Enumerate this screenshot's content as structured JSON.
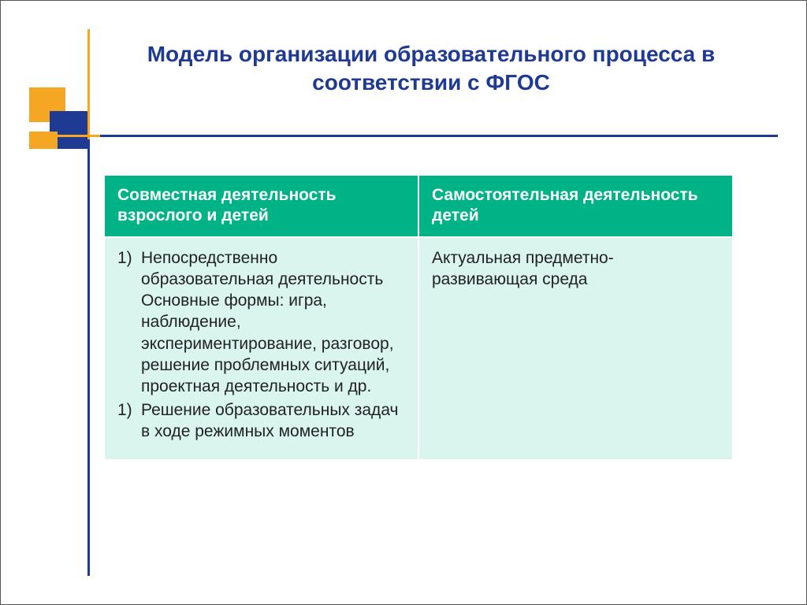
{
  "title": "Модель организации образовательного процесса в соответствии с ФГОС",
  "table": {
    "headers": [
      "Совместная деятельность взрослого и детей",
      "Самостоятельная деятельность детей"
    ],
    "col1": {
      "items": [
        {
          "num": "1)",
          "text": "Непосредственно образовательная деятельность Основные формы: игра, наблюдение, экспериментирование, разговор, решение проблемных ситуаций, проектная деятельность и др."
        },
        {
          "num": "1)",
          "text": "Решение образовательных задач в ходе режимных моментов"
        }
      ]
    },
    "col2": "Актуальная предметно-развивающая среда"
  },
  "colors": {
    "title": "#1f3a93",
    "accent_orange": "#f5a623",
    "accent_blue": "#1f3a93",
    "th_bg": "#00b386",
    "th_fg": "#ffffff",
    "td_bg": "#d9f5ed"
  }
}
